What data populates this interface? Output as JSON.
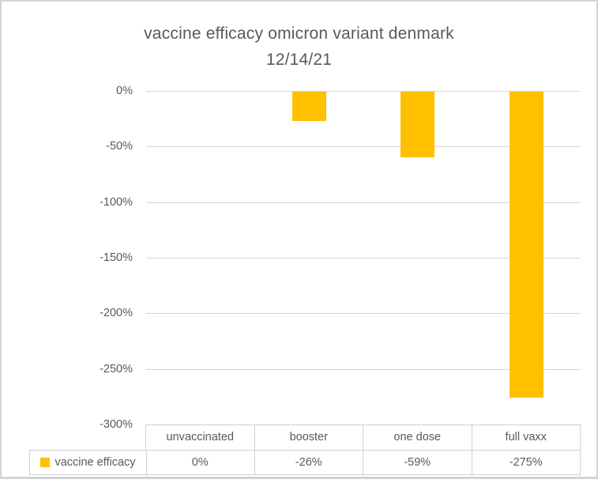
{
  "title": {
    "line1": "vaccine efficacy omicron variant denmark",
    "line2": "12/14/21"
  },
  "colors": {
    "bar": "#FFC000",
    "gridline": "#D6D6D6",
    "text": "#595959",
    "chart_border": "#D3D3D3",
    "table_border": "#D0D0D0"
  },
  "chart_data": {
    "type": "bar",
    "title": "vaccine efficacy omicron variant denmark 12/14/21",
    "categories": [
      "unvaccinated",
      "booster",
      "one dose",
      "full vaxx"
    ],
    "series": [
      {
        "name": "vaccine efficacy",
        "values": [
          0,
          -26,
          -59,
          -275
        ]
      }
    ],
    "value_labels": [
      "0%",
      "-26%",
      "-59%",
      "-275%"
    ],
    "xlabel": "",
    "ylabel": "",
    "ylim": [
      -300,
      0
    ],
    "y_ticks": [
      {
        "value": 0,
        "label": "0%"
      },
      {
        "value": -50,
        "label": "-50%"
      },
      {
        "value": -100,
        "label": "-100%"
      },
      {
        "value": -150,
        "label": "-150%"
      },
      {
        "value": -200,
        "label": "-200%"
      },
      {
        "value": -250,
        "label": "-250%"
      },
      {
        "value": -300,
        "label": "-300%"
      }
    ],
    "grid": true,
    "legend": {
      "label": "vaccine efficacy",
      "swatch_color": "#FFC000",
      "position": "bottom-table"
    },
    "bar_color": "#FFC000"
  }
}
